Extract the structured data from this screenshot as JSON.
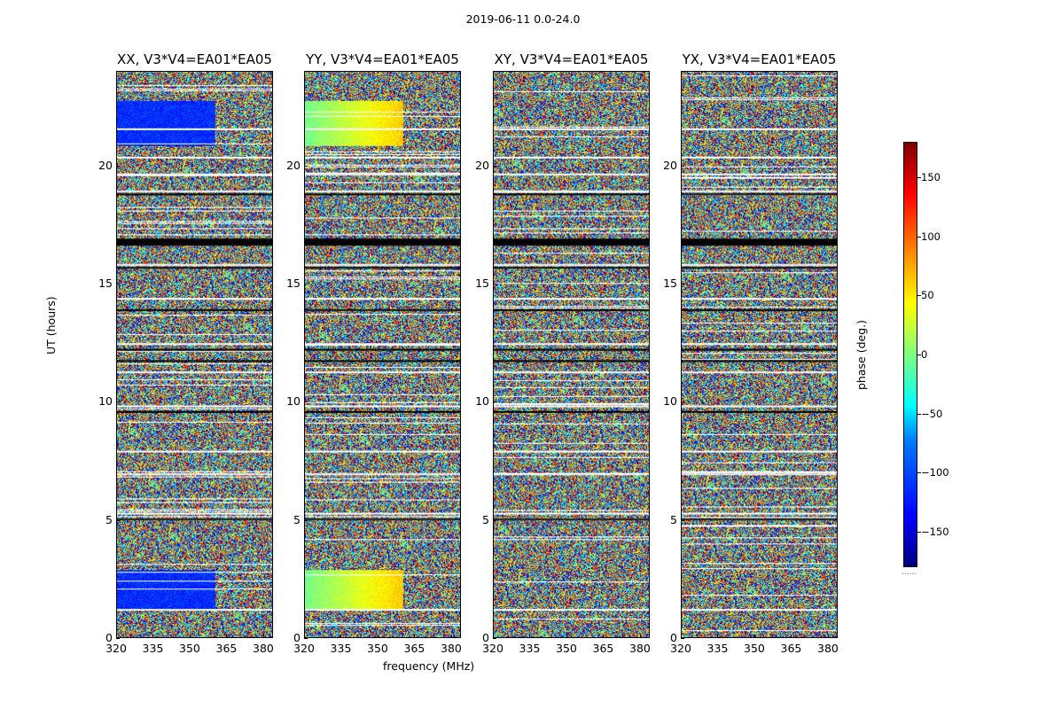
{
  "figure": {
    "suptitle": "2019-06-11 0.0-24.0",
    "ylabel": "UT (hours)",
    "xlabel": "frequency (MHz)",
    "colorbar_label": "phase (deg.)",
    "colorbar_ticks": [
      "150",
      "100",
      "50",
      "0",
      "−50",
      "−100",
      "−150"
    ],
    "colorbar_dots": "......"
  },
  "chart_data": [
    {
      "type": "heatmap",
      "title": "XX, V3*V4=EA01*EA05",
      "x_ticks": [
        "320",
        "335",
        "350",
        "365",
        "380"
      ],
      "y_ticks": [
        "0",
        "5",
        "10",
        "15",
        "20"
      ],
      "xlim": [
        320,
        384
      ],
      "ylim": [
        0,
        24
      ],
      "zlim": [
        -180,
        180
      ],
      "colormap": "jet",
      "zlabel": "phase (deg.)"
    },
    {
      "type": "heatmap",
      "title": "YY, V3*V4=EA01*EA05",
      "x_ticks": [
        "320",
        "335",
        "350",
        "365",
        "380"
      ],
      "y_ticks": [
        "0",
        "5",
        "10",
        "15",
        "20"
      ],
      "xlim": [
        320,
        384
      ],
      "ylim": [
        0,
        24
      ],
      "zlim": [
        -180,
        180
      ],
      "colormap": "jet",
      "zlabel": "phase (deg.)"
    },
    {
      "type": "heatmap",
      "title": "XY, V3*V4=EA01*EA05",
      "x_ticks": [
        "320",
        "335",
        "350",
        "365",
        "380"
      ],
      "y_ticks": [
        "0",
        "5",
        "10",
        "15",
        "20"
      ],
      "xlim": [
        320,
        384
      ],
      "ylim": [
        0,
        24
      ],
      "zlim": [
        -180,
        180
      ],
      "colormap": "jet",
      "zlabel": "phase (deg.)"
    },
    {
      "type": "heatmap",
      "title": "YX, V3*V4=EA01*EA05",
      "x_ticks": [
        "320",
        "335",
        "350",
        "365",
        "380"
      ],
      "y_ticks": [
        "0",
        "5",
        "10",
        "15",
        "20"
      ],
      "xlim": [
        320,
        384
      ],
      "ylim": [
        0,
        24
      ],
      "zlim": [
        -180,
        180
      ],
      "colormap": "jet",
      "zlabel": "phase (deg.)"
    }
  ]
}
